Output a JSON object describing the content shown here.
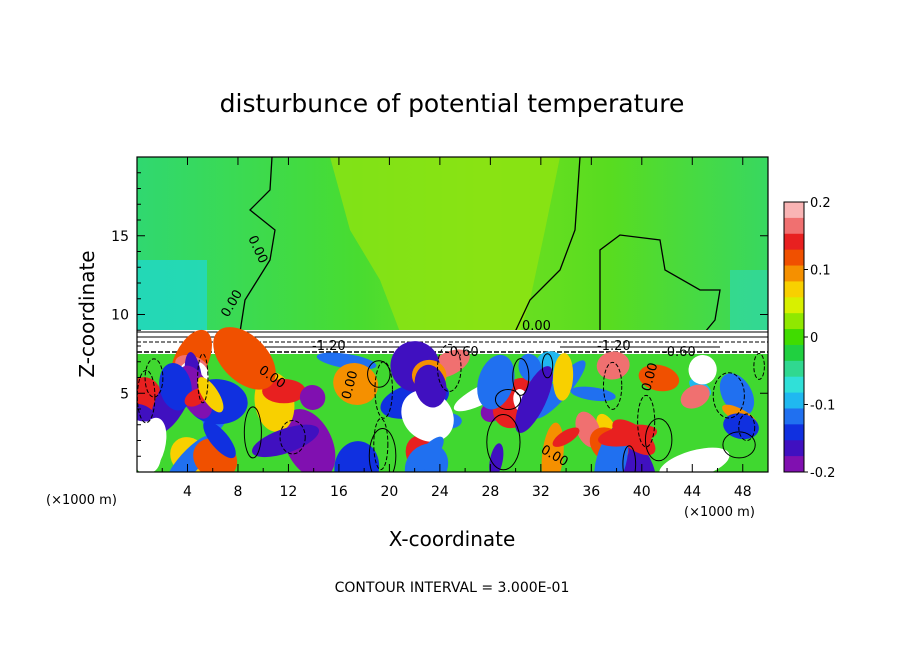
{
  "chart_data": {
    "type": "heatmap",
    "title": "disturbunce of potential temperature",
    "xlabel": "X-coordinate",
    "ylabel": "Z-coordinate",
    "x_unit_left": "(×1000 m)",
    "x_unit_right": "(×1000 m)",
    "xlim": [
      0,
      50
    ],
    "ylim": [
      0,
      20
    ],
    "x_ticks": [
      4,
      8,
      12,
      16,
      20,
      24,
      28,
      32,
      36,
      40,
      44,
      48
    ],
    "y_ticks": [
      5,
      10,
      15
    ],
    "colorbar": {
      "min": -0.2,
      "max": 0.2,
      "ticks": [
        "0.2",
        "0.1",
        "0",
        "-0.1",
        "-0.2"
      ],
      "colors": [
        "#f9b4b4",
        "#f07070",
        "#e82020",
        "#f05000",
        "#f59000",
        "#f8d000",
        "#d8f000",
        "#90e800",
        "#40dc00",
        "#20d040",
        "#30d890",
        "#30e0d8",
        "#20b8f0",
        "#2070f0",
        "#1030e0",
        "#4010c0",
        "#8010b0"
      ]
    },
    "contour_labels": [
      "0.00",
      "0.00",
      "0.00",
      "0.00",
      "0.00",
      "0.00",
      "0.00",
      "-1.20",
      "-0.60",
      "-1.20",
      "-0.60"
    ],
    "footer": "CONTOUR INTERVAL = 3.000E-01"
  }
}
